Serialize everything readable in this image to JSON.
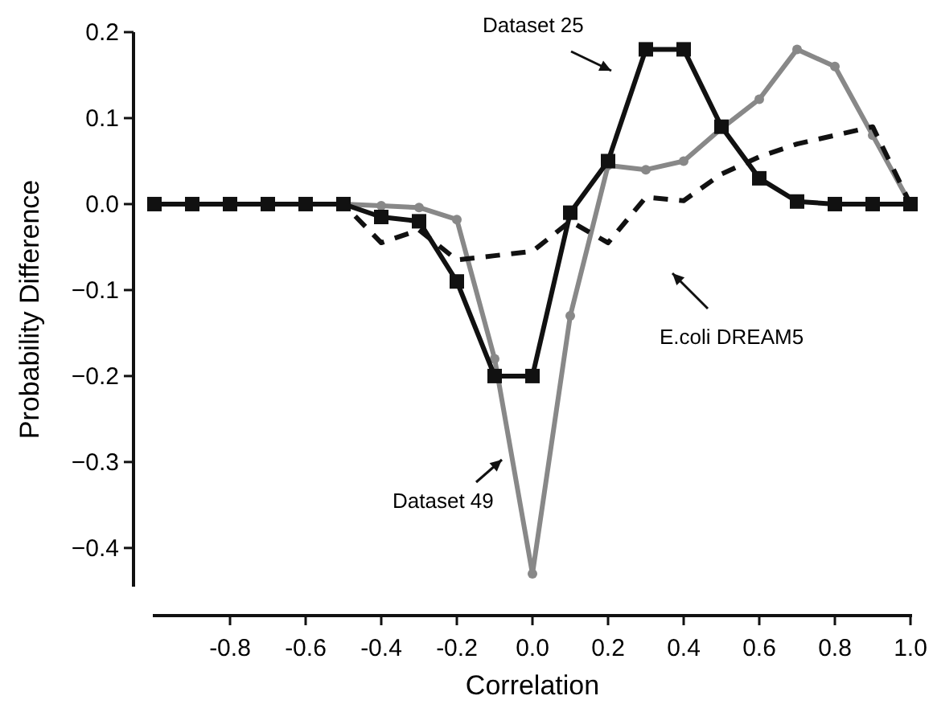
{
  "chart_data": {
    "type": "line",
    "xlabel": "Correlation",
    "ylabel": "Probability Difference",
    "xlim": [
      -1.0,
      1.0
    ],
    "ylim": [
      -0.445,
      0.2
    ],
    "xticks": [
      {
        "value": -0.8,
        "label": "-0.8"
      },
      {
        "value": -0.6,
        "label": "-0.6"
      },
      {
        "value": -0.4,
        "label": "-0.4"
      },
      {
        "value": -0.2,
        "label": "-0.2"
      },
      {
        "value": 0.0,
        "label": "0.0"
      },
      {
        "value": 0.2,
        "label": "0.2"
      },
      {
        "value": 0.4,
        "label": "0.4"
      },
      {
        "value": 0.6,
        "label": "0.6"
      },
      {
        "value": 0.8,
        "label": "0.8"
      },
      {
        "value": 1.0,
        "label": "1.0"
      }
    ],
    "yticks": [
      {
        "value": -0.4,
        "label": "−0.4"
      },
      {
        "value": -0.3,
        "label": "−0.3"
      },
      {
        "value": -0.2,
        "label": "−0.2"
      },
      {
        "value": -0.1,
        "label": "−0.1"
      },
      {
        "value": 0.0,
        "label": "0.0"
      },
      {
        "value": 0.1,
        "label": "0.1"
      },
      {
        "value": 0.2,
        "label": "0.2"
      }
    ],
    "x": [
      -1.0,
      -0.9,
      -0.8,
      -0.7,
      -0.6,
      -0.5,
      -0.4,
      -0.3,
      -0.2,
      -0.1,
      0.0,
      0.1,
      0.2,
      0.3,
      0.4,
      0.5,
      0.6,
      0.7,
      0.8,
      0.9,
      1.0
    ],
    "series": [
      {
        "color": "#888888",
        "marker": "circle",
        "line_style": "solid",
        "values": [
          0,
          0,
          0,
          0,
          0,
          0,
          -0.002,
          -0.004,
          -0.018,
          -0.18,
          -0.43,
          -0.13,
          0.045,
          0.04,
          0.05,
          0.088,
          0.122,
          0.18,
          0.16,
          0.08,
          0
        ]
      },
      {
        "color": "#111111",
        "marker": "none",
        "line_style": "dashed",
        "values": [
          0,
          0,
          0,
          0,
          0,
          0,
          -0.045,
          -0.03,
          -0.065,
          -0.06,
          -0.055,
          -0.02,
          -0.045,
          0.008,
          0.004,
          0.035,
          0.055,
          0.07,
          0.08,
          0.09,
          0
        ]
      },
      {
        "color": "#111111",
        "marker": "square",
        "line_style": "solid",
        "values": [
          0,
          0,
          0,
          0,
          0,
          0,
          -0.015,
          -0.02,
          -0.09,
          -0.2,
          -0.2,
          -0.01,
          0.05,
          0.18,
          0.18,
          0.09,
          0.03,
          0.003,
          0,
          0,
          0
        ]
      }
    ],
    "annotations": [
      "Dataset 25",
      "E.coli DREAM5",
      "Dataset 49"
    ],
    "grid": false
  }
}
